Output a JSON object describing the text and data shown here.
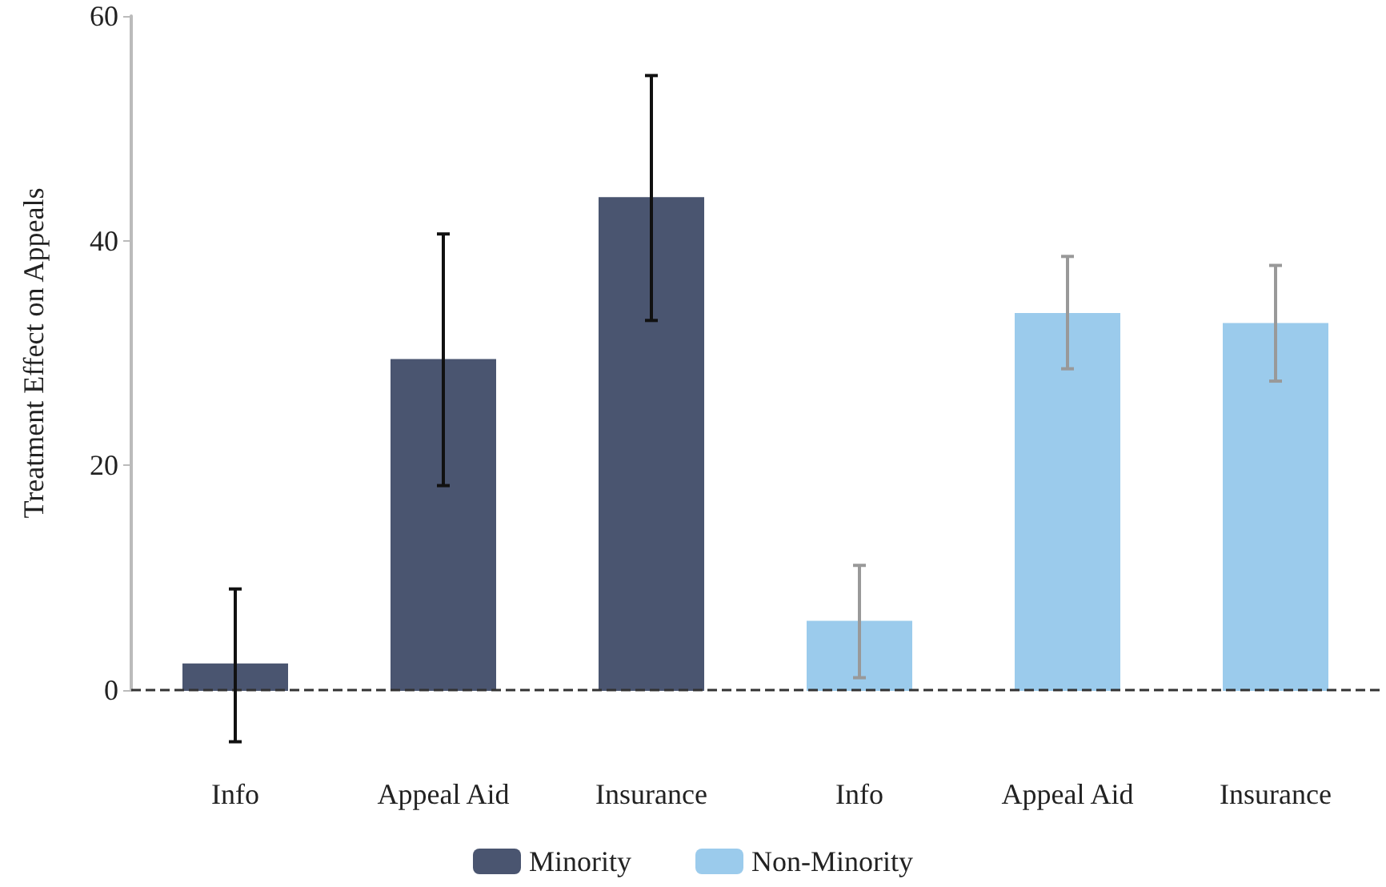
{
  "chart_data": {
    "type": "bar",
    "ylabel": "Treatment Effect on Appeals",
    "categories": [
      "Info",
      "Appeal Aid",
      "Insurance",
      "Info",
      "Appeal Aid",
      "Insurance"
    ],
    "series": [
      {
        "name": "Minority",
        "color": "#4a5570",
        "values": [
          2.3,
          29.4,
          43.8,
          null,
          null,
          null
        ],
        "errors": [
          [
            -4.6,
            9.0
          ],
          [
            18.2,
            40.6
          ],
          [
            32.9,
            54.7
          ],
          null,
          null,
          null
        ]
      },
      {
        "name": "Non-Minority",
        "color": "#9bcbec",
        "values": [
          null,
          null,
          null,
          6.1,
          33.5,
          32.6
        ],
        "errors": [
          null,
          null,
          null,
          [
            1.1,
            11.1
          ],
          [
            28.6,
            38.6
          ],
          [
            27.5,
            37.8
          ]
        ]
      }
    ],
    "ylim": [
      0,
      60
    ],
    "yticks": [
      0,
      20,
      40,
      60
    ],
    "grid": false,
    "legend": "bottom",
    "ref_lines": [
      {
        "axis": "y",
        "value": 0,
        "line_style": "dashed",
        "color": "#333333"
      }
    ]
  }
}
